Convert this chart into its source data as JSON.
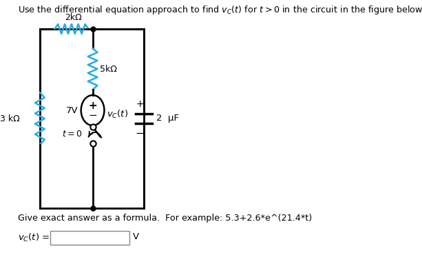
{
  "title_text": "Use the differential equation approach to find $v_C(t)$ for $t > 0$ in the circuit in the figure below.",
  "bg_color": "#ffffff",
  "circuit_color": "#000000",
  "resistor_color_cyan": "#29abe2",
  "label_2k": "2kΩ",
  "label_5k": "5kΩ",
  "label_3k": "3 kΩ",
  "label_7v": "7V",
  "label_vc": "$v_C(t)$",
  "label_cap": "2  μF",
  "label_t0": "$t = 0$",
  "give_text": "Give exact answer as a formula.  For example: 5.3+2.6*e^(21.4*t)",
  "vc_label": "$v_C(t)$ =",
  "v_label": "V"
}
